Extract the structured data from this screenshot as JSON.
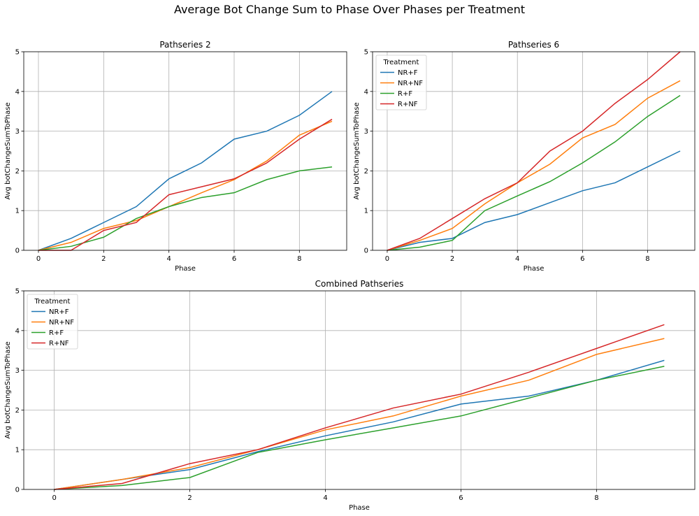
{
  "figure": {
    "title": "Average Bot Change Sum to Phase Over Phases per Treatment"
  },
  "colors": {
    "NR+F": "#1f77b4",
    "NR+NF": "#ff7f0e",
    "R+F": "#2ca02c",
    "R+NF": "#d62728"
  },
  "chart_data": [
    {
      "type": "line",
      "title": "Pathseries 2",
      "xlabel": "Phase",
      "ylabel": "Avg botChangeSumToPhase",
      "xlim": [
        -0.45,
        9.45
      ],
      "ylim": [
        0,
        5
      ],
      "xticks": [
        0,
        2,
        4,
        6,
        8
      ],
      "yticks": [
        0,
        1,
        2,
        3,
        4,
        5
      ],
      "grid": true,
      "legend": null,
      "x": [
        0,
        1,
        2,
        3,
        4,
        5,
        6,
        7,
        8,
        9
      ],
      "series": [
        {
          "name": "NR+F",
          "values": [
            0,
            0.3,
            0.7,
            1.1,
            1.8,
            2.2,
            2.8,
            3.0,
            3.4,
            4.0
          ]
        },
        {
          "name": "NR+NF",
          "values": [
            0,
            0.2,
            0.55,
            0.75,
            1.1,
            1.45,
            1.78,
            2.25,
            2.9,
            3.25
          ]
        },
        {
          "name": "R+F",
          "values": [
            0,
            0.1,
            0.33,
            0.8,
            1.1,
            1.33,
            1.45,
            1.78,
            2.0,
            2.1
          ]
        },
        {
          "name": "R+NF",
          "values": [
            0,
            0,
            0.5,
            0.7,
            1.4,
            1.6,
            1.8,
            2.2,
            2.8,
            3.3
          ]
        }
      ]
    },
    {
      "type": "line",
      "title": "Pathseries 6",
      "xlabel": "Phase",
      "ylabel": "Avg botChangeSumToPhase",
      "xlim": [
        -0.45,
        9.45
      ],
      "ylim": [
        0,
        5
      ],
      "xticks": [
        0,
        2,
        4,
        6,
        8
      ],
      "yticks": [
        0,
        1,
        2,
        3,
        4,
        5
      ],
      "grid": true,
      "legend": {
        "title": "Treatment",
        "placement": "upper-left"
      },
      "x": [
        0,
        1,
        2,
        3,
        4,
        5,
        6,
        7,
        8,
        9
      ],
      "series": [
        {
          "name": "NR+F",
          "values": [
            0,
            0.2,
            0.3,
            0.7,
            0.9,
            1.2,
            1.5,
            1.7,
            2.1,
            2.5
          ]
        },
        {
          "name": "NR+NF",
          "values": [
            0,
            0.25,
            0.55,
            1.17,
            1.7,
            2.17,
            2.83,
            3.17,
            3.83,
            4.27
          ]
        },
        {
          "name": "R+F",
          "values": [
            0,
            0.08,
            0.25,
            1.0,
            1.37,
            1.73,
            2.2,
            2.73,
            3.37,
            3.9
          ]
        },
        {
          "name": "R+NF",
          "values": [
            0,
            0.3,
            0.8,
            1.3,
            1.7,
            2.5,
            3.0,
            3.7,
            4.3,
            5.0
          ]
        }
      ]
    },
    {
      "type": "line",
      "title": "Combined Pathseries",
      "xlabel": "Phase",
      "ylabel": "Avg botChangeSumToPhase",
      "xlim": [
        -0.45,
        9.45
      ],
      "ylim": [
        0,
        5
      ],
      "xticks": [
        0,
        2,
        4,
        6,
        8
      ],
      "yticks": [
        0,
        1,
        2,
        3,
        4,
        5
      ],
      "grid": true,
      "legend": {
        "title": "Treatment",
        "placement": "upper-left"
      },
      "x": [
        0,
        1,
        2,
        3,
        4,
        5,
        6,
        7,
        8,
        9
      ],
      "series": [
        {
          "name": "NR+F",
          "values": [
            0,
            0.25,
            0.5,
            0.95,
            1.35,
            1.7,
            2.15,
            2.35,
            2.75,
            3.25
          ]
        },
        {
          "name": "NR+NF",
          "values": [
            0,
            0.25,
            0.55,
            1.0,
            1.5,
            1.85,
            2.35,
            2.75,
            3.4,
            3.8
          ]
        },
        {
          "name": "R+F",
          "values": [
            0,
            0.1,
            0.3,
            0.93,
            1.25,
            1.55,
            1.85,
            2.3,
            2.75,
            3.1
          ]
        },
        {
          "name": "R+NF",
          "values": [
            0,
            0.15,
            0.65,
            1.0,
            1.55,
            2.05,
            2.4,
            2.95,
            3.55,
            4.15
          ]
        }
      ]
    }
  ]
}
